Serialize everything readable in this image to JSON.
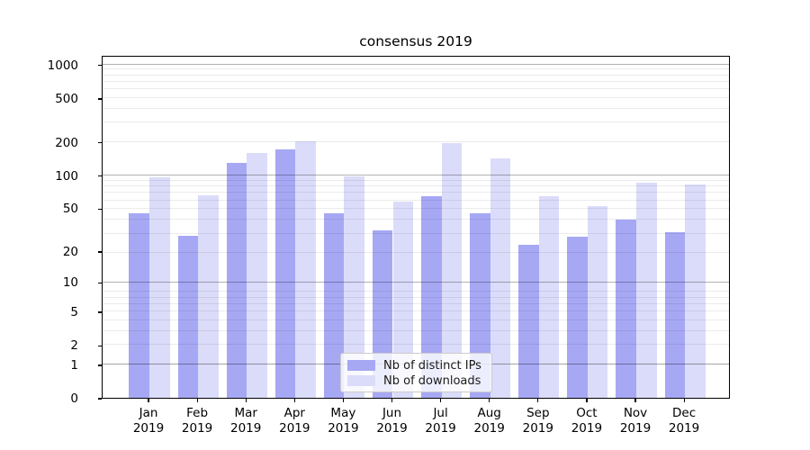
{
  "title": "consensus 2019",
  "chart_data": {
    "type": "bar",
    "title": "consensus 2019",
    "categories": [
      "Jan",
      "Feb",
      "Mar",
      "Apr",
      "May",
      "Jun",
      "Jul",
      "Aug",
      "Sep",
      "Oct",
      "Nov",
      "Dec"
    ],
    "category_year": "2019",
    "series": [
      {
        "name": "Nb of distinct IPs",
        "color": "#a6a8f4",
        "values": [
          45,
          28,
          130,
          170,
          45,
          31,
          65,
          45,
          23,
          27,
          39,
          30
        ]
      },
      {
        "name": "Nb of downloads",
        "color": "#dbdcf9",
        "values": [
          95,
          66,
          160,
          205,
          97,
          58,
          195,
          142,
          64,
          52,
          85,
          83
        ]
      }
    ],
    "xlabel": "",
    "ylabel": "",
    "y_ticks": [
      0,
      1,
      2,
      5,
      10,
      20,
      50,
      100,
      200,
      500,
      1000
    ],
    "y_major_gridline_values": [
      1,
      10,
      100,
      1000
    ],
    "y_scale": "log10(1+value)",
    "ylim": [
      0,
      1220
    ],
    "grid": true,
    "legend_position": "lower center",
    "legend_entries": [
      "Nb of distinct IPs",
      "Nb of downloads"
    ]
  }
}
